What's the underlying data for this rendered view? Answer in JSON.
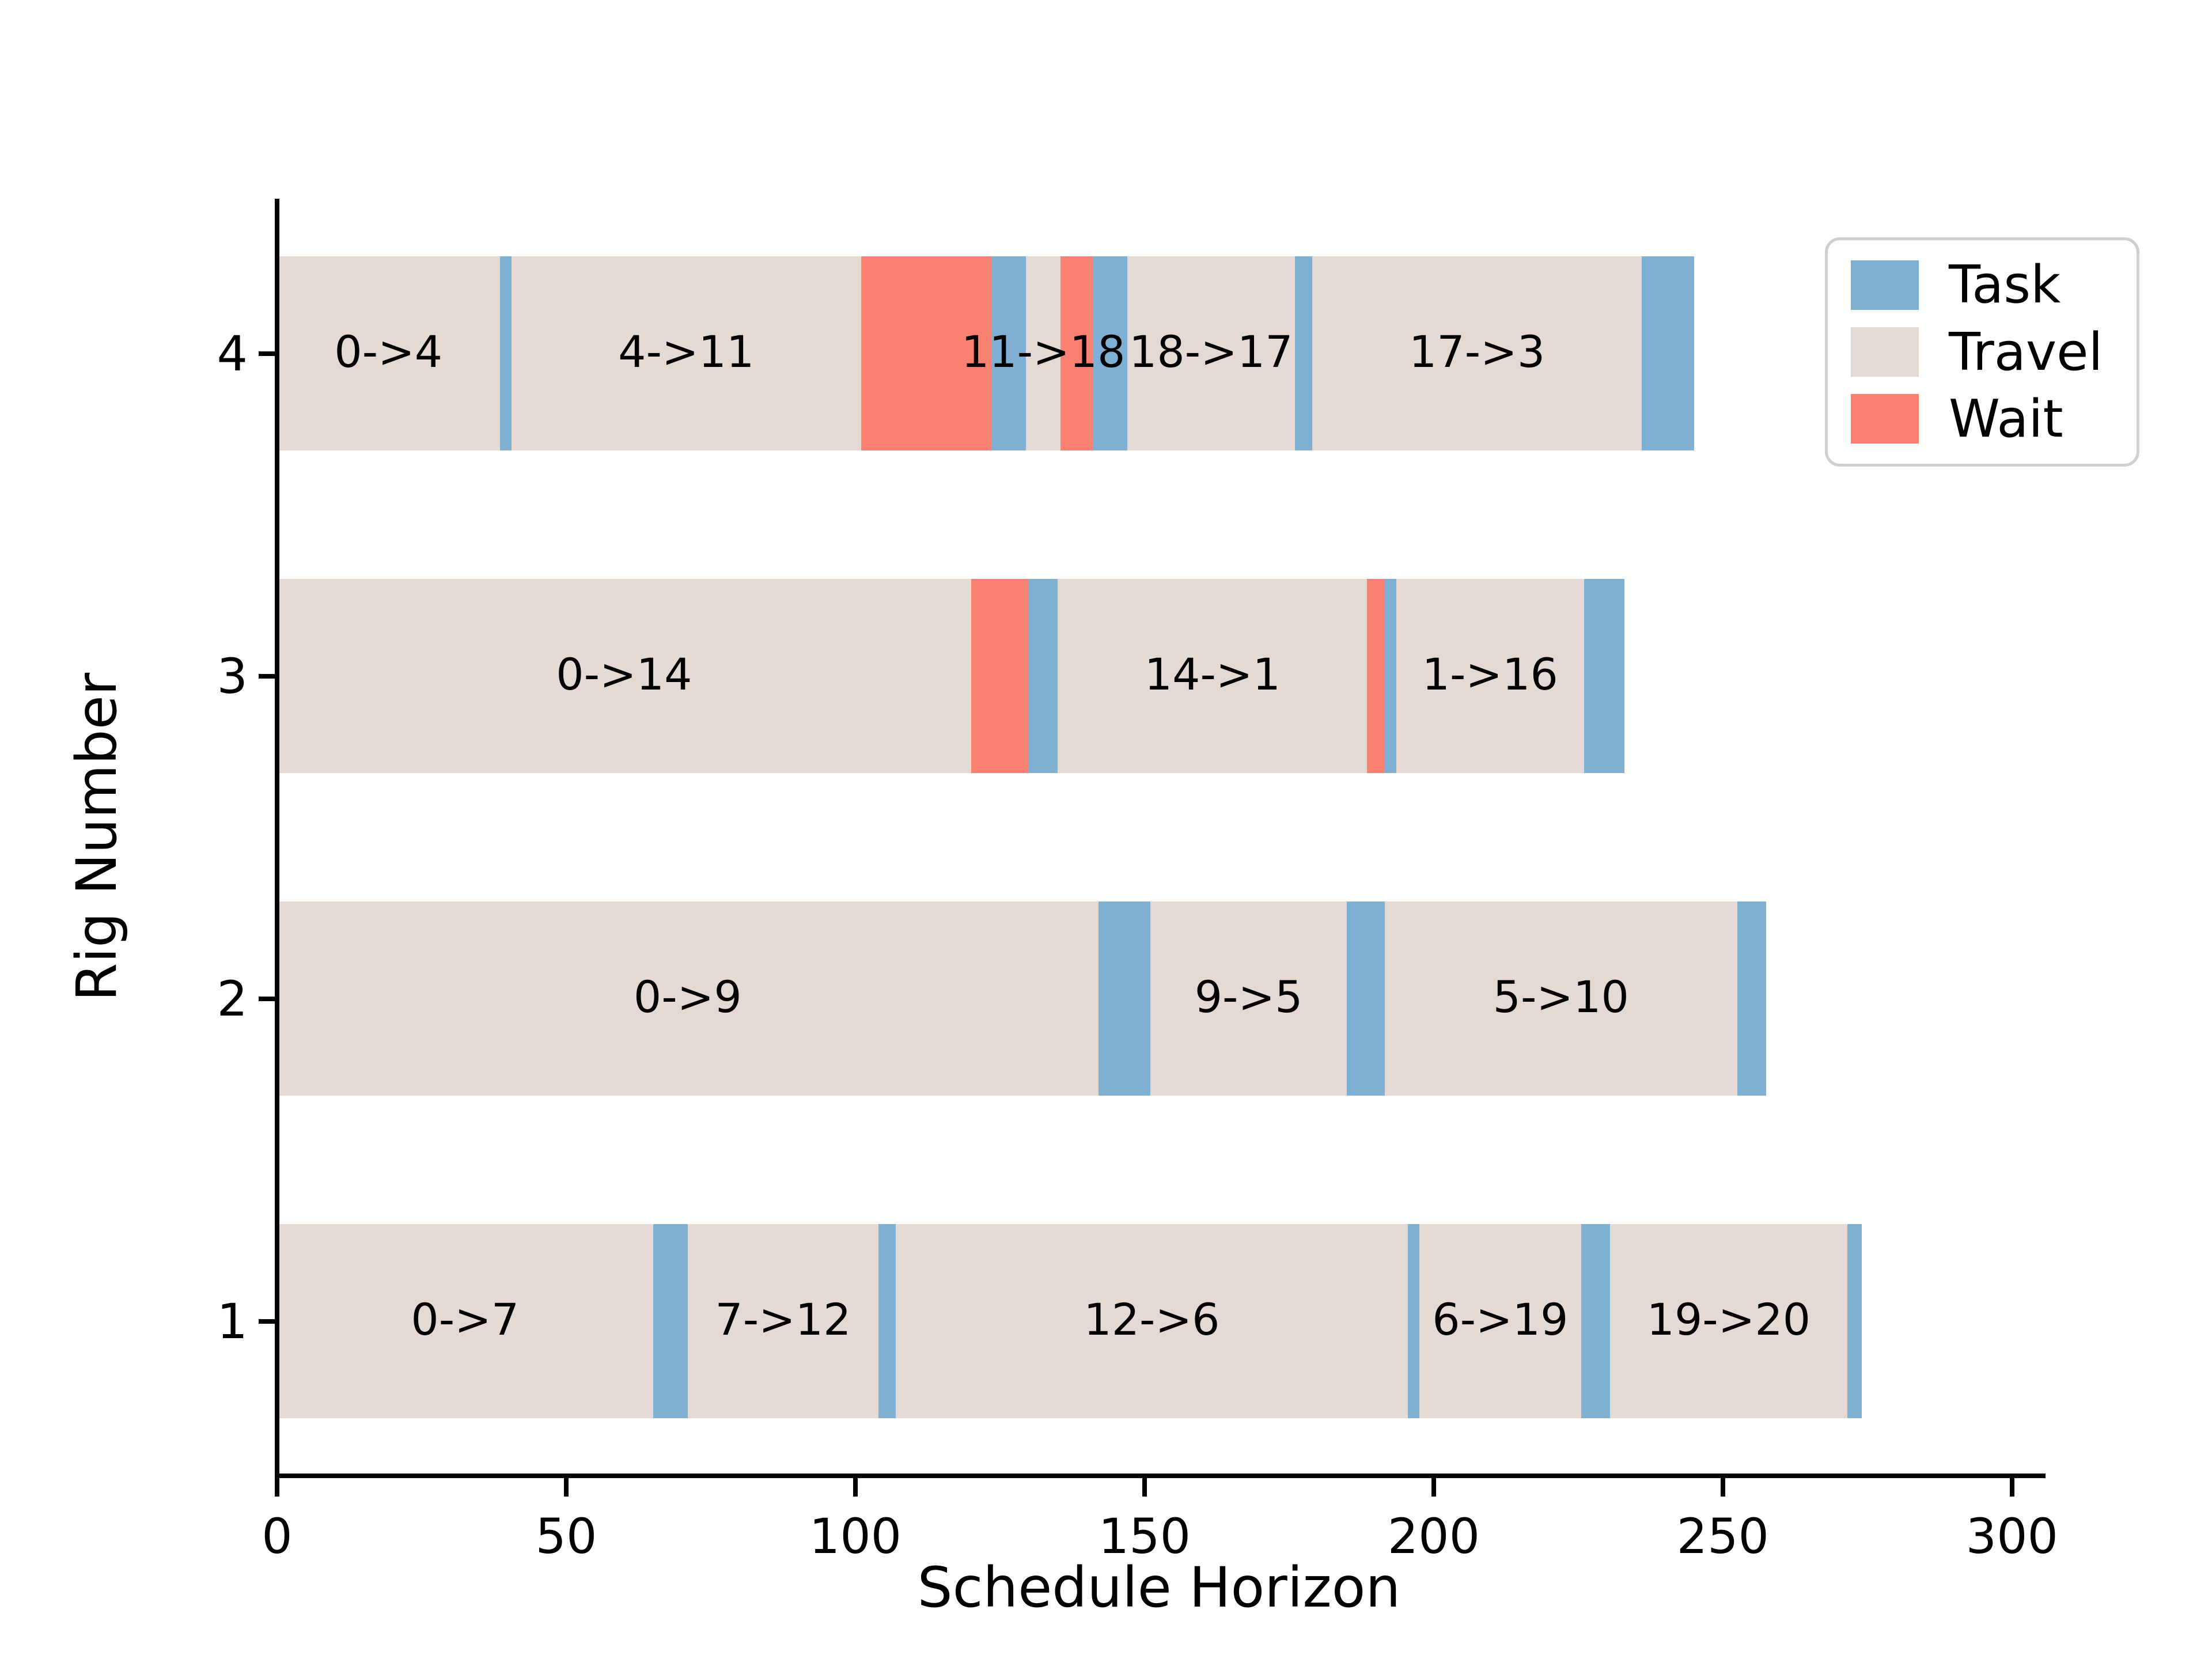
{
  "figure": {
    "xlabel": "Schedule Horizon",
    "ylabel": "Rig Number",
    "background_color": "#ffffff",
    "axis_color": "#000000"
  },
  "legend": {
    "position": "upper right",
    "items": [
      {
        "label": "Task",
        "color": "#7fafd2"
      },
      {
        "label": "Travel",
        "color": "#e5dad3"
      },
      {
        "label": "Wait",
        "color": "#fa8072"
      }
    ]
  },
  "chart_data": {
    "type": "bar",
    "subtype": "horizontal-gantt",
    "title": "",
    "xlabel": "Schedule Horizon",
    "ylabel": "Rig Number",
    "xlim": [
      0,
      305
    ],
    "x_ticks": [
      0,
      50,
      100,
      150,
      200,
      250,
      300
    ],
    "y_categories_bottom_to_top": [
      "1",
      "2",
      "3",
      "4"
    ],
    "grid": false,
    "legend_entries": [
      "Task",
      "Travel",
      "Wait"
    ],
    "colors": {
      "task": "#7fafd2",
      "travel": "#e5dad3",
      "wait": "#fa8072"
    },
    "rows": [
      {
        "rig": "4",
        "segments": [
          {
            "kind": "travel",
            "label": "0->4",
            "start": 0,
            "end": 38.5
          },
          {
            "kind": "task",
            "start": 38.5,
            "end": 40.5
          },
          {
            "kind": "travel",
            "label": "4->11",
            "start": 40.5,
            "end": 101
          },
          {
            "kind": "wait",
            "start": 101,
            "end": 123.5
          },
          {
            "kind": "task",
            "start": 123.5,
            "end": 129.5
          },
          {
            "kind": "travel",
            "label": "11->18",
            "start": 129.5,
            "end": 135.5
          },
          {
            "kind": "wait",
            "start": 135.5,
            "end": 141
          },
          {
            "kind": "task",
            "start": 141,
            "end": 147
          },
          {
            "kind": "travel",
            "label": "18->17",
            "start": 147,
            "end": 176
          },
          {
            "kind": "task",
            "start": 176,
            "end": 179
          },
          {
            "kind": "travel",
            "label": "17->3",
            "start": 179,
            "end": 236
          },
          {
            "kind": "task",
            "start": 236,
            "end": 245
          }
        ]
      },
      {
        "rig": "3",
        "segments": [
          {
            "kind": "travel",
            "label": "0->14",
            "start": 0,
            "end": 120
          },
          {
            "kind": "wait",
            "start": 120,
            "end": 130
          },
          {
            "kind": "task",
            "start": 130,
            "end": 135
          },
          {
            "kind": "travel",
            "label": "14->1",
            "start": 135,
            "end": 188.5
          },
          {
            "kind": "wait",
            "start": 188.5,
            "end": 191.5
          },
          {
            "kind": "task",
            "start": 191.5,
            "end": 193.5
          },
          {
            "kind": "travel",
            "label": "1->16",
            "start": 193.5,
            "end": 226
          },
          {
            "kind": "task",
            "start": 226,
            "end": 233
          }
        ]
      },
      {
        "rig": "2",
        "segments": [
          {
            "kind": "travel",
            "label": "0->9",
            "start": 0,
            "end": 142
          },
          {
            "kind": "task",
            "start": 142,
            "end": 151
          },
          {
            "kind": "travel",
            "label": "9->5",
            "start": 151,
            "end": 185
          },
          {
            "kind": "task",
            "start": 185,
            "end": 191.5
          },
          {
            "kind": "travel",
            "label": "5->10",
            "start": 191.5,
            "end": 252.5
          },
          {
            "kind": "task",
            "start": 252.5,
            "end": 257.5
          }
        ]
      },
      {
        "rig": "1",
        "segments": [
          {
            "kind": "travel",
            "label": "0->7",
            "start": 0,
            "end": 65
          },
          {
            "kind": "task",
            "start": 65,
            "end": 71
          },
          {
            "kind": "travel",
            "label": "7->12",
            "start": 71,
            "end": 104
          },
          {
            "kind": "task",
            "start": 104,
            "end": 107
          },
          {
            "kind": "travel",
            "label": "12->6",
            "start": 107,
            "end": 195.5
          },
          {
            "kind": "task",
            "start": 195.5,
            "end": 197.5
          },
          {
            "kind": "travel",
            "label": "6->19",
            "start": 197.5,
            "end": 225.5
          },
          {
            "kind": "task",
            "start": 225.5,
            "end": 230.5
          },
          {
            "kind": "travel",
            "label": "19->20",
            "start": 230.5,
            "end": 271.5
          },
          {
            "kind": "task",
            "start": 271.5,
            "end": 274
          }
        ]
      }
    ]
  }
}
